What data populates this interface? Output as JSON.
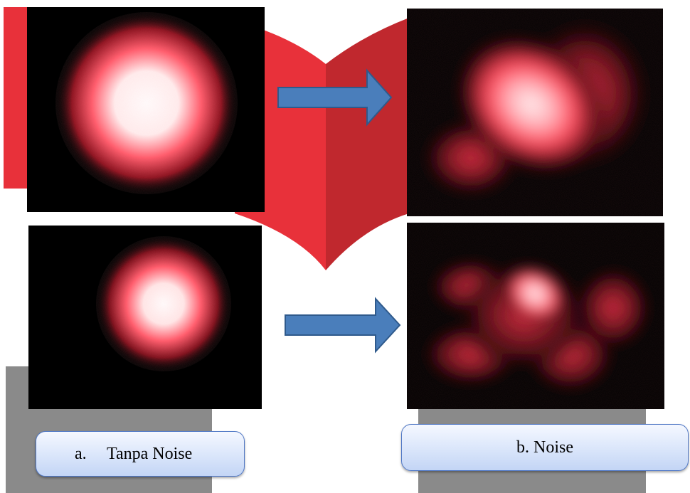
{
  "figure": {
    "colors": {
      "book_light": "#e8313a",
      "book_dark": "#c0282e",
      "gray_block": "#8a8a8a",
      "arrow_fill": "#4a7ebb",
      "arrow_stroke": "#2f5a8c",
      "spot_core": "#fff6f6",
      "spot_glow": "#ff4a5c",
      "background": "#000000"
    },
    "panels": [
      {
        "name": "top-left-clean-spot",
        "type": "laser-spot-clean"
      },
      {
        "name": "top-right-noisy-spot",
        "type": "laser-spot-noisy"
      },
      {
        "name": "bottom-left-clean-spot",
        "type": "laser-spot-clean"
      },
      {
        "name": "bottom-right-noisy-spot",
        "type": "laser-spot-noisy"
      }
    ],
    "arrows": [
      {
        "icon": "arrow-right-icon",
        "direction": "right"
      },
      {
        "icon": "arrow-right-icon",
        "direction": "right"
      }
    ],
    "labels": {
      "a_marker": "a.",
      "a_text": "Tanpa Noise",
      "b_text": "b. Noise"
    }
  }
}
